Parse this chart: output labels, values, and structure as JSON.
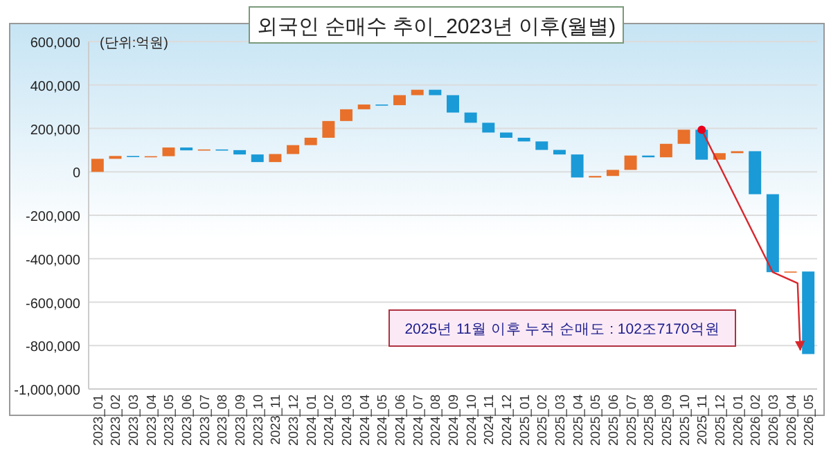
{
  "chart_data": {
    "type": "bar",
    "title": "외국인 순매수 추이_2023년 이후(월별)",
    "ylabel": "(단위:억원)",
    "categories": [
      "2023_01",
      "2023_02",
      "2023_03",
      "2023_04",
      "2023_05",
      "2023_06",
      "2023_07",
      "2023_08",
      "2023_09",
      "2023_10",
      "2023_11",
      "2023_12",
      "2024_01",
      "2024_02",
      "2024_03",
      "2024_04",
      "2024_05",
      "2024_06",
      "2024_07",
      "2024_08",
      "2024_09",
      "2024_10",
      "2024_11",
      "2024_12",
      "2025_01",
      "2025_02",
      "2025_03",
      "2025_04",
      "2025_05",
      "2025_06",
      "2025_07",
      "2025_08",
      "2025_09",
      "2025_10",
      "2025_11",
      "2025_12",
      "2026_01",
      "2026_02",
      "2026_03",
      "2026_04",
      "2026_05"
    ],
    "base": [
      0,
      60000,
      73000,
      69000,
      72000,
      112000,
      99000,
      103000,
      100000,
      80000,
      45000,
      82000,
      123000,
      157000,
      234000,
      288000,
      310000,
      307000,
      353000,
      378000,
      353000,
      273000,
      226000,
      181000,
      157000,
      140000,
      101000,
      80000,
      -26000,
      -19000,
      9000,
      75000,
      67000,
      129000,
      194000,
      56000,
      86000,
      95000,
      -103000,
      -462000,
      -459000
    ],
    "values": [
      60000,
      13000,
      -4000,
      3000,
      40000,
      -13000,
      4000,
      -3000,
      -20000,
      -35000,
      37000,
      41000,
      34000,
      77000,
      54000,
      22000,
      -3000,
      46000,
      25000,
      -25000,
      -80000,
      -47000,
      -45000,
      -24000,
      -17000,
      -39000,
      -21000,
      -106000,
      7000,
      28000,
      66000,
      -8000,
      62000,
      65000,
      -138000,
      30000,
      9000,
      -198000,
      -359000,
      3000,
      -380000
    ],
    "colors": [
      "#e8702a",
      "#e8702a",
      "#1a9ad6",
      "#e8702a",
      "#e8702a",
      "#1a9ad6",
      "#e8702a",
      "#1a9ad6",
      "#1a9ad6",
      "#1a9ad6",
      "#e8702a",
      "#e8702a",
      "#e8702a",
      "#e8702a",
      "#e8702a",
      "#e8702a",
      "#1a9ad6",
      "#e8702a",
      "#e8702a",
      "#1a9ad6",
      "#1a9ad6",
      "#1a9ad6",
      "#1a9ad6",
      "#1a9ad6",
      "#1a9ad6",
      "#1a9ad6",
      "#1a9ad6",
      "#1a9ad6",
      "#e8702a",
      "#e8702a",
      "#e8702a",
      "#1a9ad6",
      "#e8702a",
      "#e8702a",
      "#1a9ad6",
      "#e8702a",
      "#e8702a",
      "#1a9ad6",
      "#1a9ad6",
      "#e8702a",
      "#1a9ad6"
    ],
    "ylim": [
      -1000000,
      600000
    ],
    "yticks": [
      {
        "value": -1000000,
        "label": "-1,000,000"
      },
      {
        "value": -800000,
        "label": "-800,000"
      },
      {
        "value": -600000,
        "label": "-600,000"
      },
      {
        "value": -400000,
        "label": "-400,000"
      },
      {
        "value": -200000,
        "label": "-200,000"
      },
      {
        "value": 0,
        "label": "0"
      },
      {
        "value": 200000,
        "label": "200,000"
      },
      {
        "value": 400000,
        "label": "400,000"
      },
      {
        "value": 600000,
        "label": "600,000"
      }
    ],
    "grid": "y",
    "annotations": [
      "2025년 11월 이후 누적 순매도 : 102조7170억원"
    ]
  }
}
